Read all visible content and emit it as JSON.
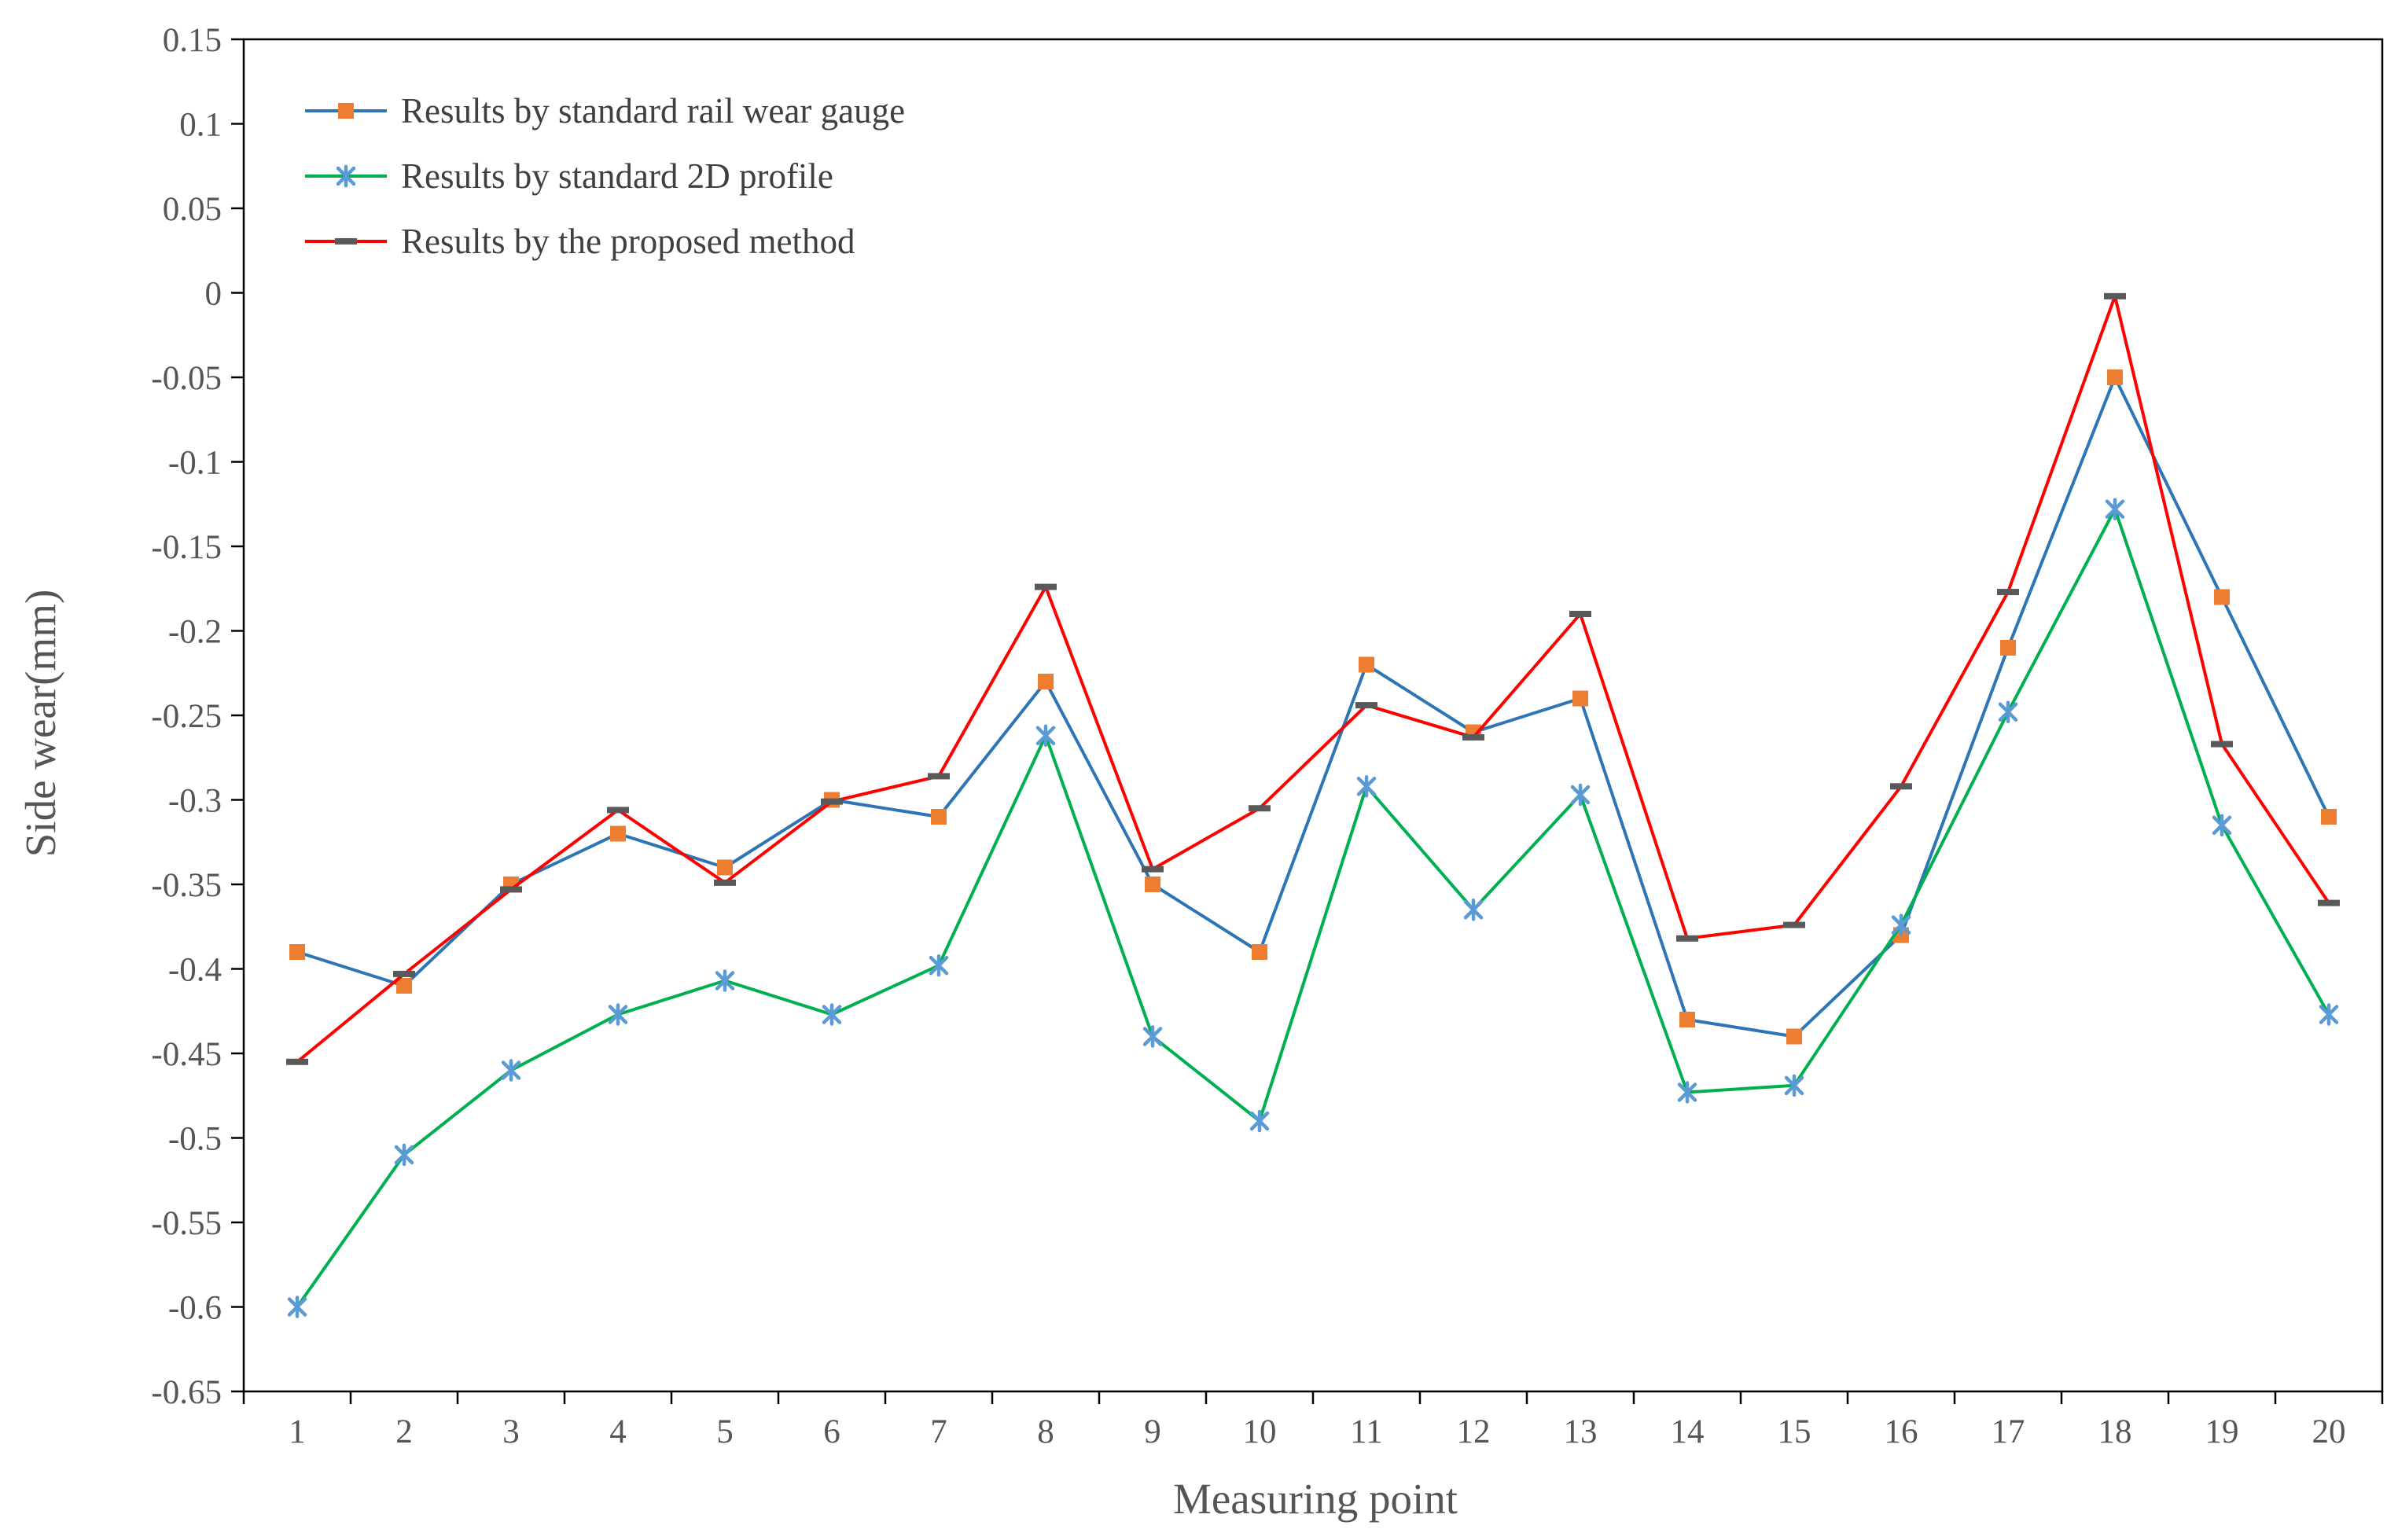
{
  "chart_data": {
    "type": "line",
    "title": "",
    "xlabel": "Measuring point",
    "ylabel": "Side wear(mm)",
    "ylim": [
      -0.65,
      0.15
    ],
    "ytick_step": 0.05,
    "yticks": [
      "0.15",
      "0.1",
      "0.05",
      "0",
      "-0.05",
      "-0.1",
      "-0.15",
      "-0.2",
      "-0.25",
      "-0.3",
      "-0.35",
      "-0.4",
      "-0.45",
      "-0.5",
      "-0.55",
      "-0.6",
      "-0.65"
    ],
    "categories": [
      "1",
      "2",
      "3",
      "4",
      "5",
      "6",
      "7",
      "8",
      "9",
      "10",
      "11",
      "12",
      "13",
      "14",
      "15",
      "16",
      "17",
      "18",
      "19",
      "20"
    ],
    "grid": false,
    "legend_position": "top-left",
    "series": [
      {
        "name": "Results by standard rail wear gauge",
        "color": "#2E75B6",
        "marker": "square",
        "marker_color": "#ED7D31",
        "values": [
          -0.39,
          -0.41,
          -0.35,
          -0.32,
          -0.34,
          -0.3,
          -0.31,
          -0.23,
          -0.35,
          -0.39,
          -0.22,
          -0.26,
          -0.24,
          -0.43,
          -0.44,
          -0.38,
          -0.21,
          -0.05,
          -0.18,
          -0.31
        ]
      },
      {
        "name": "Results by standard 2D profile",
        "color": "#00B050",
        "marker": "star",
        "marker_color": "#5B9BD5",
        "values": [
          -0.6,
          -0.51,
          -0.46,
          -0.427,
          -0.407,
          -0.427,
          -0.398,
          -0.262,
          -0.44,
          -0.49,
          -0.292,
          -0.365,
          -0.297,
          -0.473,
          -0.469,
          -0.374,
          -0.248,
          -0.128,
          -0.315,
          -0.427
        ]
      },
      {
        "name": "Results by the proposed method",
        "color": "#FF0000",
        "marker": "dash",
        "marker_color": "#595959",
        "values": [
          -0.455,
          -0.403,
          -0.353,
          -0.306,
          -0.349,
          -0.301,
          -0.286,
          -0.174,
          -0.341,
          -0.305,
          -0.244,
          -0.263,
          -0.19,
          -0.382,
          -0.374,
          -0.292,
          -0.177,
          -0.002,
          -0.267,
          -0.361
        ]
      }
    ]
  }
}
